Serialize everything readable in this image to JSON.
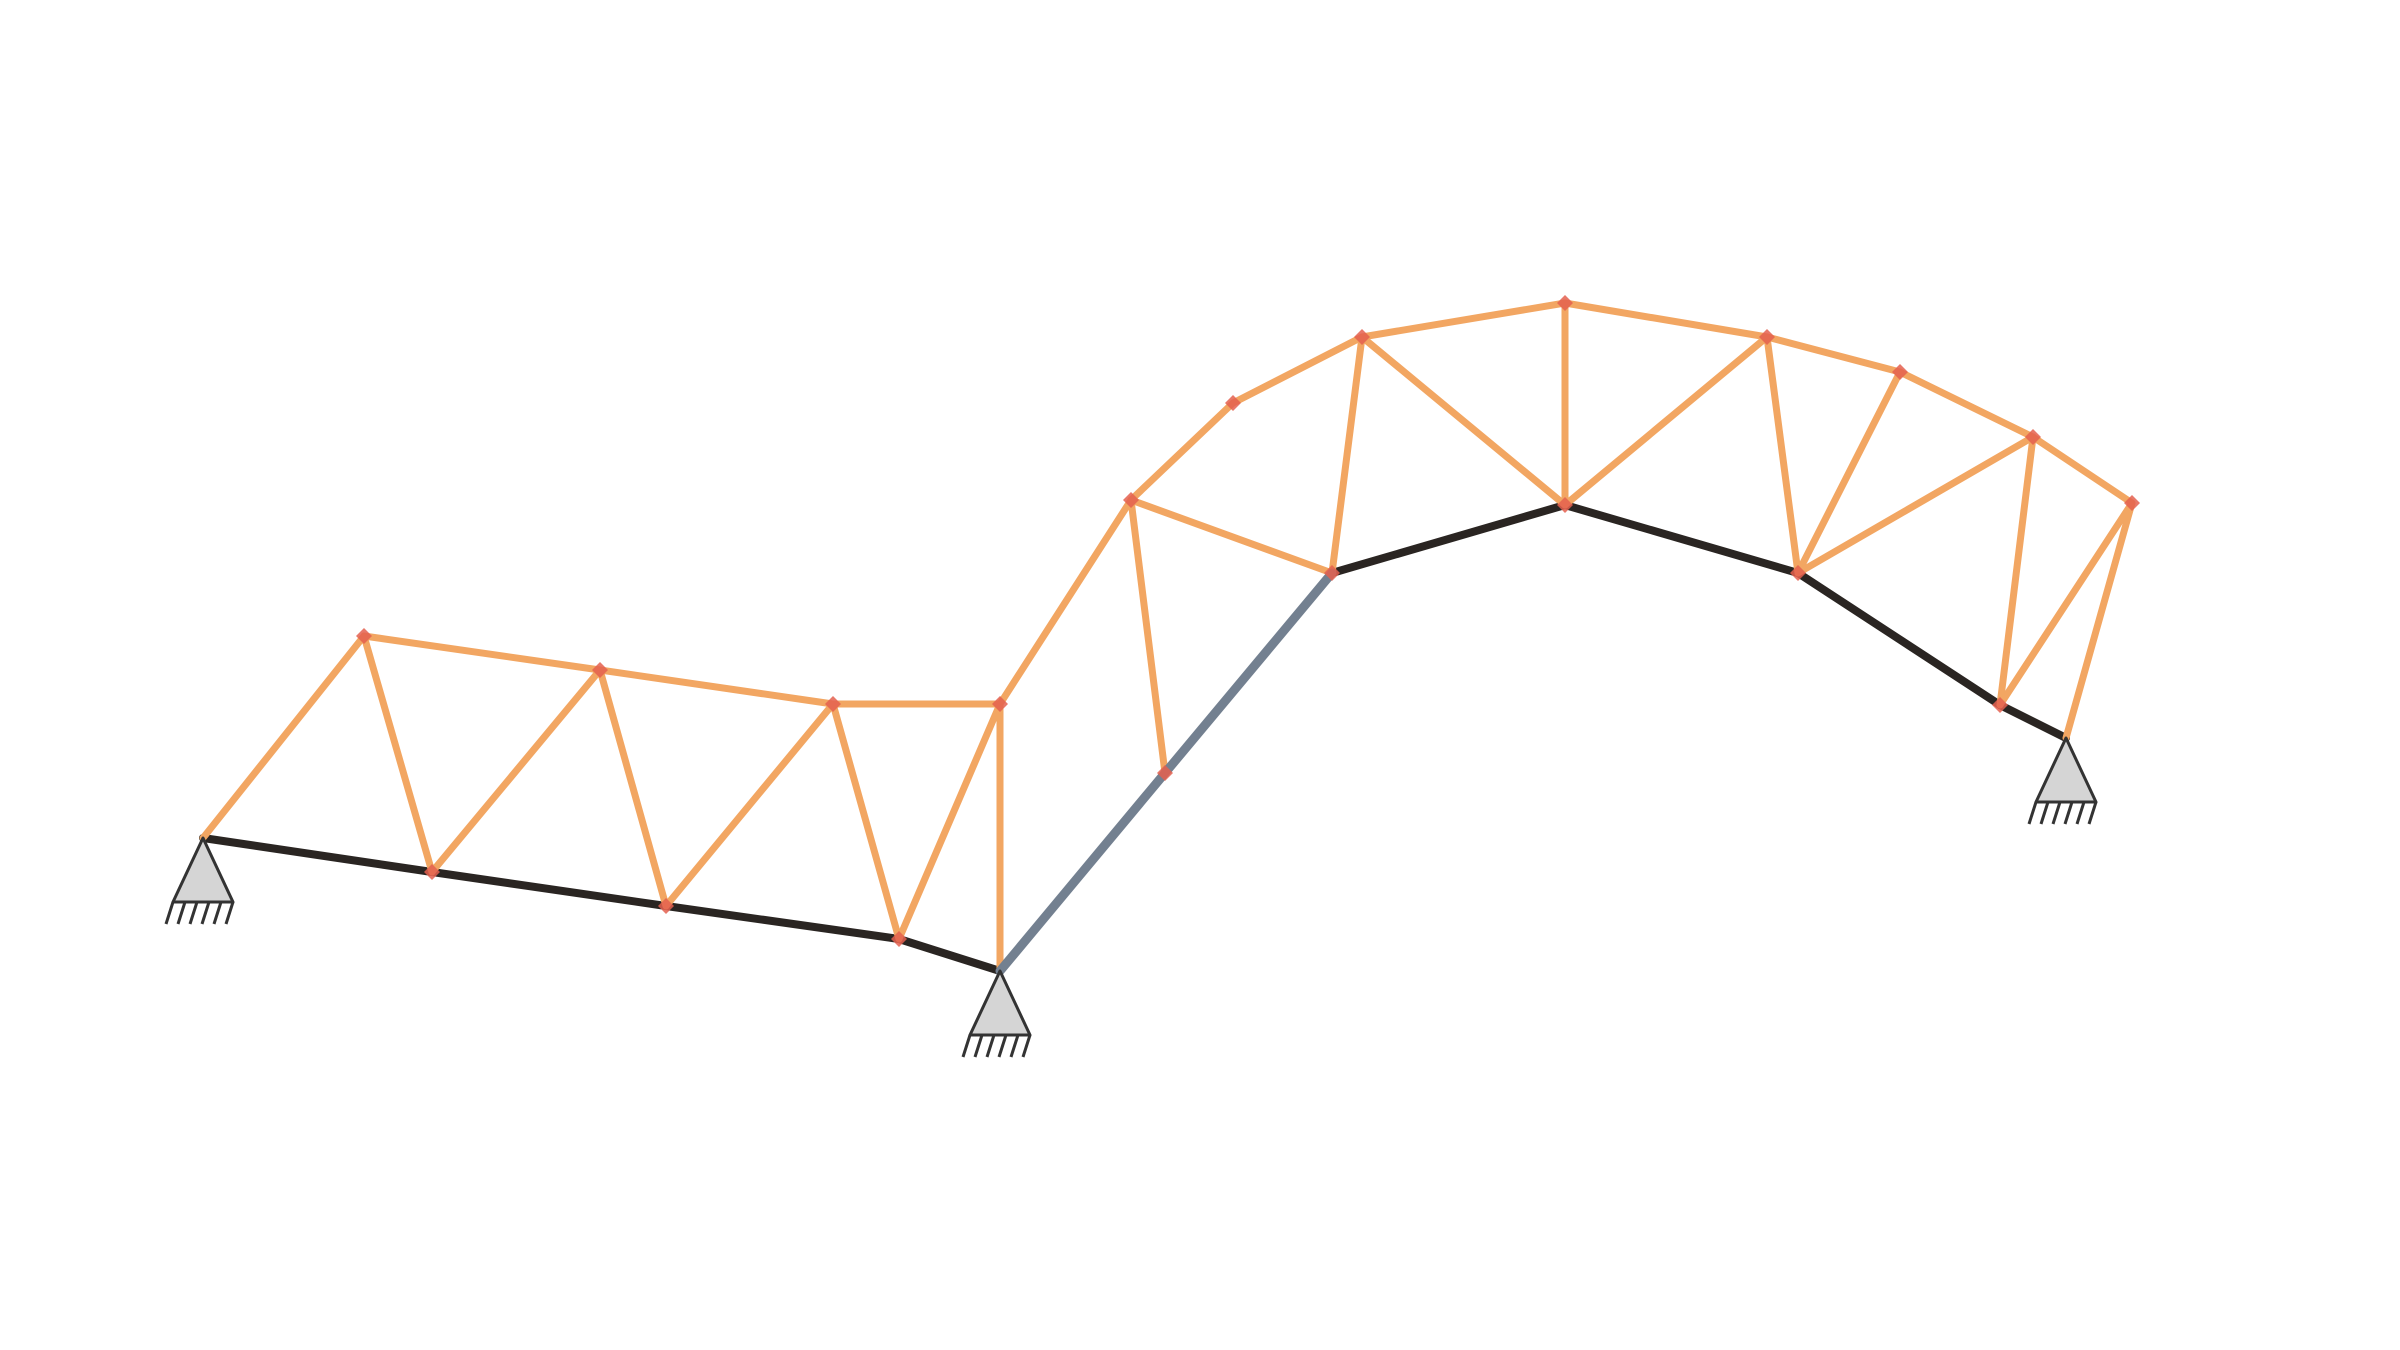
{
  "diagram": {
    "kind": "truss-structure",
    "colors": {
      "background": "#ffffff",
      "member_default": "#f2a662",
      "member_dark": "#2a2522",
      "member_gray": "#738090",
      "node_marker": "#e4604f",
      "support_fill": "#d5d5d5",
      "support_stroke": "#333333"
    },
    "member_groups": [
      "orange-web-and-chords",
      "dark-bottom-chord",
      "gray-diagonal"
    ],
    "support_type": "pin-support-with-hatched-ground",
    "support_count": 3,
    "node_marker_shape": "small-red-diamond"
  }
}
